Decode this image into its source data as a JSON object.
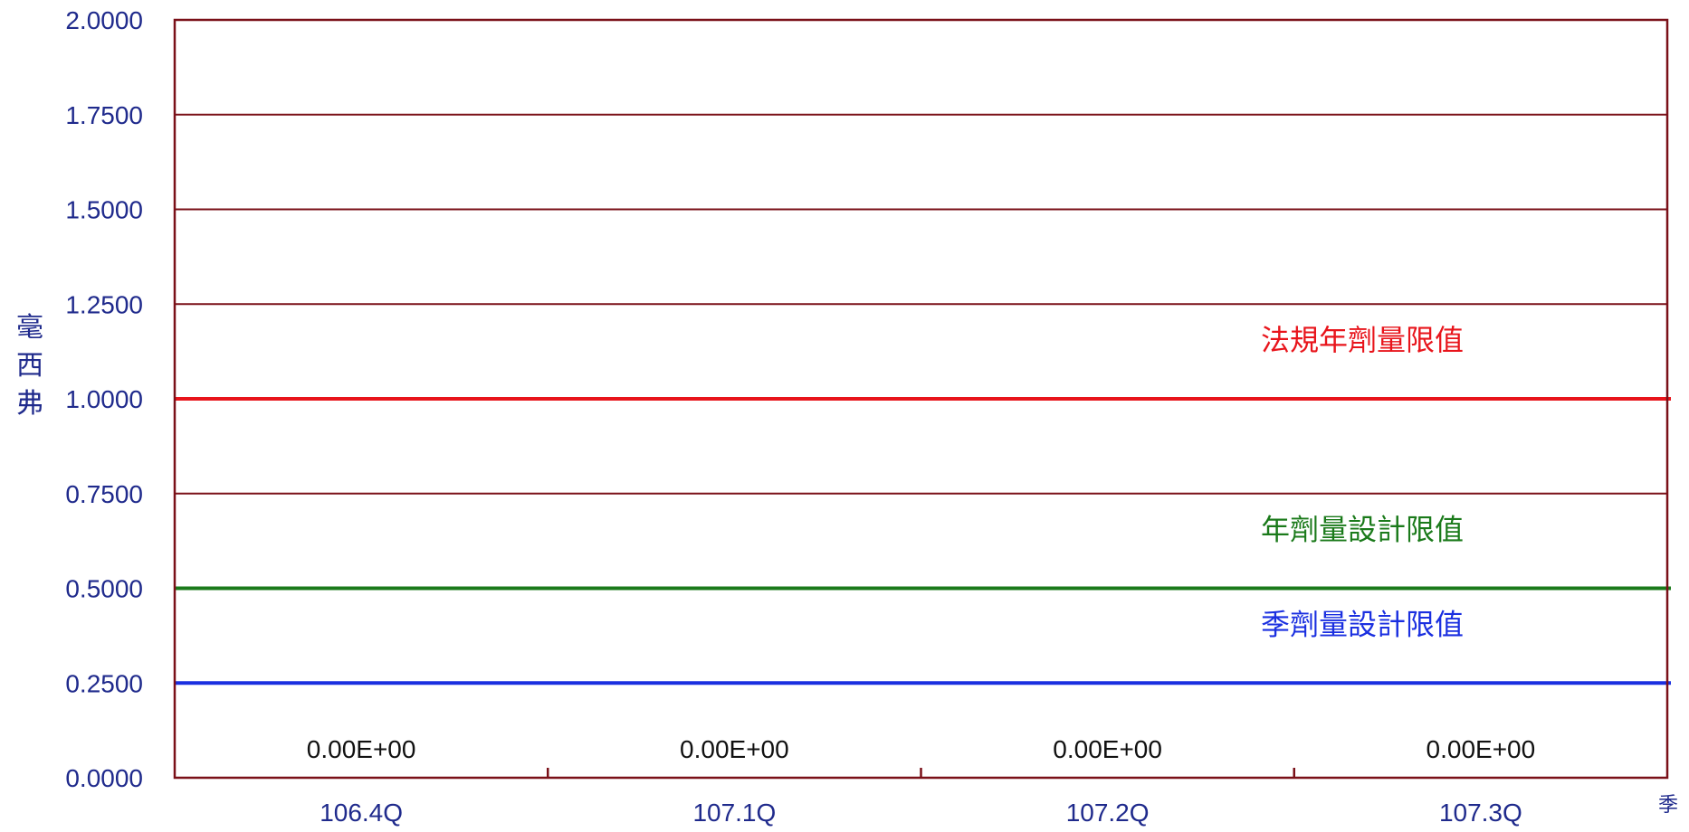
{
  "chart_data": {
    "type": "line",
    "ylabel": "毫西弗",
    "xlabel": "季",
    "ylim": [
      0,
      2
    ],
    "yticks": [
      "0.0000",
      "0.2500",
      "0.5000",
      "0.7500",
      "1.0000",
      "1.2500",
      "1.5000",
      "1.7500",
      "2.0000"
    ],
    "grid": true,
    "categories": [
      "106.4Q",
      "107.1Q",
      "107.2Q",
      "107.3Q"
    ],
    "series": [
      {
        "values": [
          0,
          0,
          0,
          0
        ],
        "data_labels": [
          "0.00E+00",
          "0.00E+00",
          "0.00E+00",
          "0.00E+00"
        ]
      }
    ],
    "reference_lines": [
      {
        "label": "法規年劑量限值",
        "value": 1.0,
        "color": "#e8141b"
      },
      {
        "label": "年劑量設計限值",
        "value": 0.5,
        "color": "#1a7a1a"
      },
      {
        "label": "季劑量設計限值",
        "value": 0.25,
        "color": "#1a2fe0"
      }
    ],
    "colors": {
      "axis": "#7a1018",
      "grid": "#7a1018",
      "tick_text": "#1f2a8c"
    }
  }
}
